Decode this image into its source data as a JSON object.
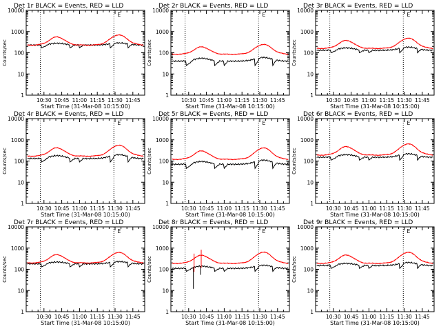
{
  "chart_data": {
    "type": "line",
    "layout": "3x3 grid",
    "x_tick_labels": [
      "10:30",
      "10:45",
      "11:00",
      "11:15",
      "11:30",
      "11:45"
    ],
    "x_tick_minutes": [
      30,
      45,
      60,
      75,
      90,
      105
    ],
    "x_range_minutes": [
      15,
      115
    ],
    "y_scale": "log",
    "y_range": [
      1,
      10000
    ],
    "y_tick_values": [
      1,
      10,
      100,
      1000,
      10000
    ],
    "y_tick_labels": [
      "1",
      "10",
      "100",
      "1000",
      "10000"
    ],
    "xlabel": "Start Time (31-Mar-08 10:15:00)",
    "ylabel": "Counts/sec",
    "dotted_vlines_minutes": [
      27,
      89
    ],
    "vline_marker_label": "E",
    "vline_marker_minute": 92,
    "legend": [
      {
        "name": "Events",
        "color": "#000000"
      },
      {
        "name": "LLD",
        "color": "#ff0000"
      }
    ],
    "panels": [
      {
        "title": "Det 1r BLACK = Events, RED = LLD",
        "red": {
          "base": 230,
          "peaks": [
            560,
            700
          ]
        },
        "black": {
          "base": 230,
          "peaks": [
            280,
            290
          ],
          "dip_floor": 170
        }
      },
      {
        "title": "Det 2r BLACK = Events, RED = LLD",
        "red": {
          "base": 85,
          "peaks": [
            190,
            250
          ]
        },
        "black": {
          "base": 40,
          "peaks": [
            55,
            60
          ],
          "dip_floor": 25
        }
      },
      {
        "title": "Det 3r BLACK = Events, RED = LLD",
        "red": {
          "base": 160,
          "peaks": [
            380,
            490
          ]
        },
        "black": {
          "base": 130,
          "peaks": [
            170,
            185
          ],
          "dip_floor": 100
        }
      },
      {
        "title": "Det 4r BLACK = Events, RED = LLD",
        "red": {
          "base": 170,
          "peaks": [
            420,
            560
          ]
        },
        "black": {
          "base": 130,
          "peaks": [
            180,
            200
          ],
          "dip_floor": 90
        }
      },
      {
        "title": "Det 5r BLACK = Events, RED = LLD",
        "red": {
          "base": 120,
          "peaks": [
            300,
            420
          ]
        },
        "black": {
          "base": 70,
          "peaks": [
            95,
            110
          ],
          "dip_floor": 45
        }
      },
      {
        "title": "Det 6r BLACK = Events, RED = LLD",
        "red": {
          "base": 190,
          "peaks": [
            480,
            650
          ]
        },
        "black": {
          "base": 150,
          "peaks": [
            200,
            220
          ],
          "dip_floor": 110
        }
      },
      {
        "title": "Det 7r BLACK = Events, RED = LLD",
        "red": {
          "base": 200,
          "peaks": [
            490,
            630
          ]
        },
        "black": {
          "base": 180,
          "peaks": [
            220,
            230
          ],
          "dip_floor": 130
        }
      },
      {
        "title": "Det 8r BLACK = Events, RED = LLD",
        "red": {
          "base": 190,
          "peaks": [
            460,
            650
          ]
        },
        "black": {
          "base": 110,
          "peaks": [
            140,
            155
          ],
          "dip_floor": 80
        },
        "spikes_minutes": [
          34,
          40
        ]
      },
      {
        "title": "Det 9r BLACK = Events, RED = LLD",
        "red": {
          "base": 190,
          "peaks": [
            470,
            640
          ]
        },
        "black": {
          "base": 150,
          "peaks": [
            190,
            210
          ],
          "dip_floor": 110
        }
      }
    ]
  }
}
